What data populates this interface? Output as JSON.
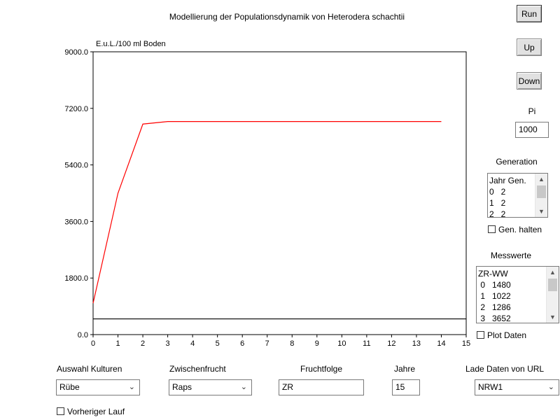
{
  "title": "Modellierung der Populationsdynamik von Heterodera schachtii",
  "buttons": {
    "run": "Run",
    "up": "Up",
    "down": "Down"
  },
  "pi": {
    "label": "Pi",
    "value": "1000"
  },
  "generation": {
    "label": "Generation",
    "header": "Jahr Gen.",
    "rows": [
      "0   2",
      "1   2",
      "2   2"
    ],
    "hold_label": "Gen. halten",
    "hold_checked": false
  },
  "messwerte": {
    "label": "Messwerte",
    "header": "ZR-WW",
    "rows": [
      " 0   1480",
      " 1   1022",
      " 2   1286",
      " 3   3652"
    ],
    "plot_label": "Plot Daten",
    "plot_checked": false
  },
  "controls": {
    "kulturen": {
      "label": "Auswahl Kulturen",
      "value": "Rübe"
    },
    "zwischenfrucht": {
      "label": "Zwischenfrucht",
      "value": "Raps"
    },
    "fruchtfolge": {
      "label": "Fruchtfolge",
      "value": "ZR"
    },
    "jahre": {
      "label": "Jahre",
      "value": "15"
    },
    "url": {
      "label": "Lade Daten von URL",
      "value": "NRW1"
    },
    "vorheriger": {
      "label": "Vorheriger Lauf",
      "checked": false
    }
  },
  "icons": {
    "dropdown": "chevron-down-icon",
    "scroll_up": "scroll-up-arrow-icon",
    "scroll_down": "scroll-down-arrow-icon"
  },
  "chart_data": {
    "type": "line",
    "ylabel": "E.u.L./100 ml Boden",
    "xlim": [
      0,
      15
    ],
    "ylim": [
      0,
      9000
    ],
    "xticks": [
      "0",
      "1",
      "2",
      "3",
      "4",
      "5",
      "6",
      "7",
      "8",
      "9",
      "10",
      "11",
      "12",
      "13",
      "14",
      "15"
    ],
    "yticks": [
      "0.0",
      "1800.0",
      "3600.0",
      "5400.0",
      "7200.0",
      "9000.0"
    ],
    "series": [
      {
        "color": "#ff0000",
        "x": [
          0,
          1,
          2,
          3,
          4,
          5,
          6,
          7,
          8,
          9,
          10,
          11,
          12,
          13,
          14
        ],
        "y": [
          1000,
          4500,
          6700,
          6780,
          6780,
          6780,
          6780,
          6780,
          6780,
          6780,
          6780,
          6780,
          6780,
          6780,
          6780
        ]
      },
      {
        "color": "#000000",
        "x": [
          0,
          15
        ],
        "y": [
          500,
          500
        ]
      }
    ],
    "grid": false,
    "legend": "none"
  }
}
